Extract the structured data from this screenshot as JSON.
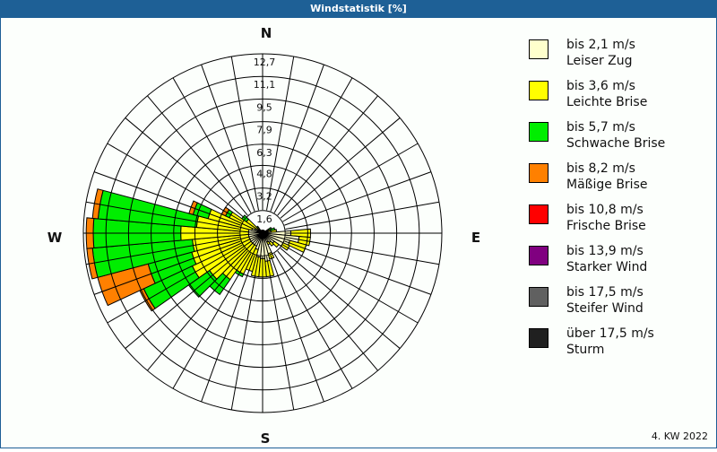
{
  "title": "Windstatistik [%]",
  "footer": "4. KW 2022",
  "compass": {
    "n": "N",
    "e": "E",
    "s": "S",
    "w": "W"
  },
  "legend": [
    {
      "line1": "bis 2,1 m/s",
      "line2": "Leiser Zug",
      "color": "#ffffcc"
    },
    {
      "line1": "bis 3,6 m/s",
      "line2": "Leichte Brise",
      "color": "#ffff00"
    },
    {
      "line1": "bis 5,7 m/s",
      "line2": "Schwache Brise",
      "color": "#00ee00"
    },
    {
      "line1": "bis 8,2 m/s",
      "line2": "Mäßige Brise",
      "color": "#ff8000"
    },
    {
      "line1": "bis 10,8 m/s",
      "line2": "Frische Brise",
      "color": "#ff0000"
    },
    {
      "line1": "bis 13,9 m/s",
      "line2": "Starker Wind",
      "color": "#800080"
    },
    {
      "line1": "bis 17,5 m/s",
      "line2": "Steifer Wind",
      "color": "#606060"
    },
    {
      "line1": "über 17,5 m/s",
      "line2": "Sturm",
      "color": "#202020"
    }
  ],
  "chart_data": {
    "type": "polar-bar",
    "title": "Windstatistik [%]",
    "subtitle": "4. KW 2022",
    "radial_ticks": [
      1.6,
      3.2,
      4.8,
      6.3,
      7.9,
      9.5,
      11.1,
      12.7
    ],
    "rmax": 12.7,
    "sector_width_deg": 10,
    "series_names": [
      "bis 2,1 m/s Leiser Zug",
      "bis 3,6 m/s Leichte Brise",
      "bis 5,7 m/s Schwache Brise",
      "bis 8,2 m/s Mäßige Brise",
      "bis 10,8 m/s Frische Brise",
      "bis 13,9 m/s Starker Wind",
      "bis 17,5 m/s Steifer Wind",
      "über 17,5 m/s Sturm"
    ],
    "sectors": [
      {
        "dir": 60,
        "values": [
          0.2,
          0.3,
          0.2,
          0
        ]
      },
      {
        "dir": 70,
        "values": [
          0.4,
          0.2,
          0.3,
          0
        ]
      },
      {
        "dir": 80,
        "values": [
          0.6,
          0.4,
          0,
          0
        ]
      },
      {
        "dir": 90,
        "values": [
          2.0,
          1.4,
          0,
          0
        ]
      },
      {
        "dir": 100,
        "values": [
          2.6,
          0.8,
          0,
          0
        ]
      },
      {
        "dir": 110,
        "values": [
          2.0,
          1.2,
          0,
          0
        ]
      },
      {
        "dir": 120,
        "values": [
          1.6,
          0.5,
          0,
          0
        ]
      },
      {
        "dir": 130,
        "values": [
          1.0,
          0.4,
          0,
          0
        ]
      },
      {
        "dir": 140,
        "values": [
          0.8,
          0.3,
          0,
          0
        ]
      },
      {
        "dir": 150,
        "values": [
          0.7,
          0.2,
          0,
          0
        ]
      },
      {
        "dir": 160,
        "values": [
          1.5,
          0.4,
          0,
          0
        ]
      },
      {
        "dir": 170,
        "values": [
          2.0,
          1.1,
          0,
          0
        ]
      },
      {
        "dir": 180,
        "values": [
          1.8,
          1.3,
          0,
          0
        ]
      },
      {
        "dir": 190,
        "values": [
          1.7,
          1.4,
          0,
          0
        ]
      },
      {
        "dir": 200,
        "values": [
          1.2,
          1.6,
          0,
          0
        ]
      },
      {
        "dir": 210,
        "values": [
          1.0,
          2.2,
          0.2,
          0
        ]
      },
      {
        "dir": 220,
        "values": [
          1.0,
          3.0,
          1.3,
          0
        ]
      },
      {
        "dir": 230,
        "values": [
          1.0,
          3.6,
          1.8,
          0
        ]
      },
      {
        "dir": 240,
        "values": [
          1.0,
          4.5,
          3.8,
          0.3
        ]
      },
      {
        "dir": 250,
        "values": [
          1.0,
          4.2,
          3.2,
          3.7
        ]
      },
      {
        "dir": 260,
        "values": [
          1.0,
          4.0,
          7.1,
          0.4
        ]
      },
      {
        "dir": 270,
        "values": [
          1.0,
          4.8,
          6.2,
          0.5
        ]
      },
      {
        "dir": 280,
        "values": [
          1.0,
          3.7,
          7.0,
          0.4
        ]
      },
      {
        "dir": 290,
        "values": [
          0.8,
          3.2,
          1.1,
          0.3
        ]
      },
      {
        "dir": 300,
        "values": [
          0.6,
          2.0,
          0.3,
          0.3
        ]
      },
      {
        "dir": 310,
        "values": [
          0.4,
          1.0,
          0.4,
          0
        ]
      },
      {
        "dir": 320,
        "values": [
          0.2,
          0.3,
          0.1,
          0
        ]
      },
      {
        "dir": 330,
        "values": [
          0.1,
          0.1,
          0,
          0
        ]
      }
    ]
  }
}
